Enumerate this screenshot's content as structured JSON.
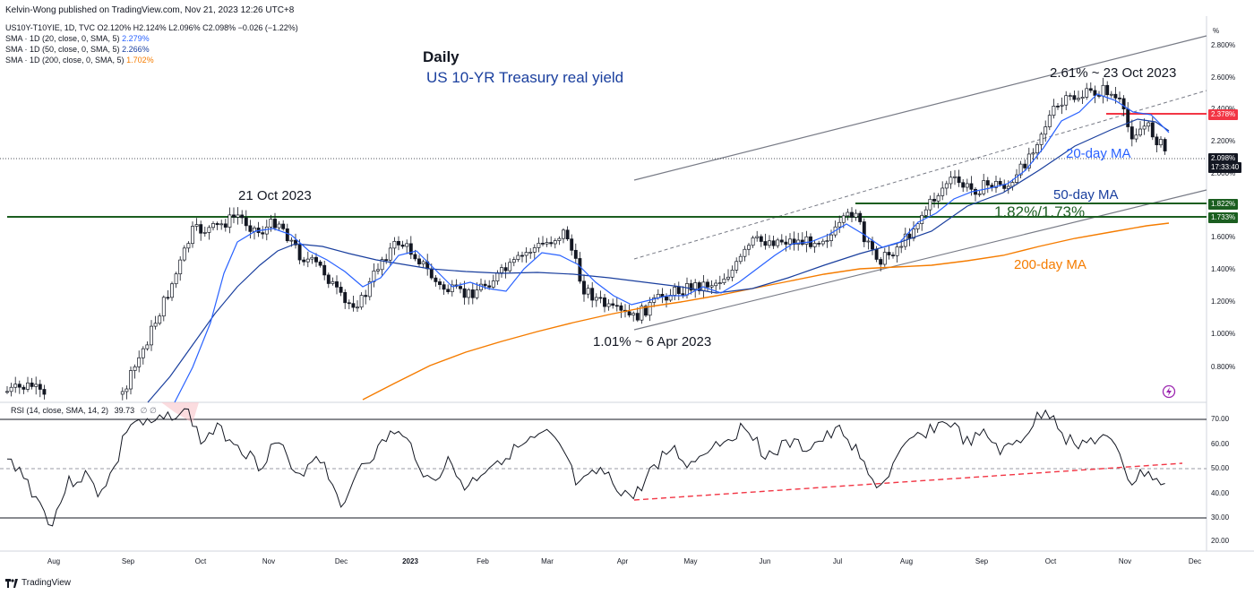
{
  "published_by": "Kelvin-Wong published on TradingView.com, Nov 21, 2023 12:26 UTC+8",
  "symbol_line": "US10Y-T10YIE, 1D, TVC  O2.120%  H2.124%  L2.096%  C2.098%  −0.026 (−1.22%)",
  "legend": [
    {
      "label": "SMA · 1D (20, close, 0, SMA, 5)",
      "value": "2.279%",
      "color": "#2962ff"
    },
    {
      "label": "SMA · 1D (50, close, 0, SMA, 5)",
      "value": "2.266%",
      "color": "#1a3f9e"
    },
    {
      "label": "SMA · 1D (200, close, 0, SMA, 5)",
      "value": "1.702%",
      "color": "#f57c00"
    }
  ],
  "rsi_legend": {
    "label": "RSI (14, close, SMA, 14, 2)",
    "value": "39.73",
    "extra": "∅  ∅"
  },
  "titles": {
    "timeframe": "Daily",
    "instrument": "US 10-YR Treasury real yield"
  },
  "annotations": {
    "high": "2.61% ~ 23 Oct 2023",
    "oct22": "21 Oct 2023",
    "low": "1.01% ~ 6 Apr 2023",
    "support": "1.82%/1.73%",
    "ma20": "20-day MA",
    "ma50": "50-day MA",
    "ma200": "200-day MA"
  },
  "price_axis": {
    "unit": "%",
    "ticks": [
      "2.800%",
      "2.600%",
      "2.400%",
      "2.200%",
      "2.000%",
      "1.800%",
      "1.600%",
      "1.400%",
      "1.200%",
      "1.000%",
      "0.800%"
    ],
    "badges": [
      {
        "text": "2.378%",
        "color": "#f23645"
      },
      {
        "text": "2.098%",
        "color": "#131722"
      },
      {
        "text": "17:33:40",
        "color": "#131722"
      },
      {
        "text": "1.822%",
        "color": "#1b5e20"
      },
      {
        "text": "1.733%",
        "color": "#1b5e20"
      }
    ]
  },
  "rsi_axis": {
    "ticks": [
      "70.00",
      "60.00",
      "50.00",
      "40.00",
      "30.00",
      "20.00"
    ]
  },
  "time_axis": {
    "ticks": [
      "Aug",
      "Sep",
      "Oct",
      "Nov",
      "Dec",
      "2023",
      "Feb",
      "Mar",
      "Apr",
      "May",
      "Jun",
      "Jul",
      "Aug",
      "Sep",
      "Oct",
      "Nov",
      "Dec"
    ]
  },
  "footer": {
    "brand": "TradingView"
  },
  "colors": {
    "ma20": "#2962ff",
    "ma50": "#1a3f9e",
    "ma200": "#f57c00",
    "support": "#1b5e20",
    "resistance": "#f23645",
    "title": "#1a3f9e"
  },
  "chart_data": {
    "type": "line",
    "series": [
      {
        "name": "US10Y-T10YIE",
        "x": [
          "2022-08",
          "2022-09",
          "2022-10-21",
          "2022-11",
          "2022-12",
          "2023-01",
          "2023-02",
          "2023-03",
          "2023-04-06",
          "2023-05",
          "2023-06",
          "2023-07",
          "2023-08",
          "2023-09",
          "2023-10-23",
          "2023-11",
          "2023-11-21"
        ],
        "values": [
          0.62,
          0.85,
          1.78,
          1.55,
          1.25,
          1.55,
          1.4,
          1.62,
          1.01,
          1.32,
          1.5,
          1.8,
          1.55,
          1.95,
          2.61,
          2.25,
          2.098
        ]
      }
    ],
    "indicators": [
      {
        "name": "SMA 20",
        "last": 2.279
      },
      {
        "name": "SMA 50",
        "last": 2.266
      },
      {
        "name": "SMA 200",
        "last": 1.702
      },
      {
        "name": "RSI 14",
        "last": 39.73
      }
    ],
    "levels": {
      "resistance": 2.378,
      "support": [
        1.822,
        1.733
      ],
      "last_close": 2.098
    },
    "ylim": [
      0.62,
      2.95
    ],
    "rsi_ylim": [
      15,
      80
    ]
  }
}
